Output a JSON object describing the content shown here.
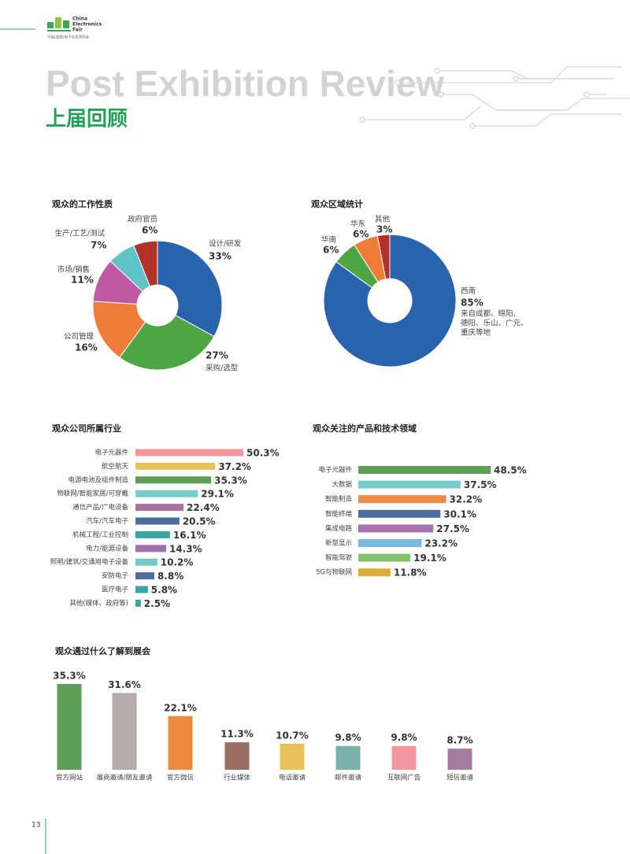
{
  "header": {
    "logo_lines": [
      "China",
      "Electronics",
      "Fair"
    ],
    "logo_sub": "中国(西部)电子信息博览会",
    "title_en": "Post Exhibition Review",
    "title_cn": "上届回顾"
  },
  "page_number": "13",
  "chart_data": [
    {
      "type": "donut",
      "title": "观众的工作性质",
      "categories": [
        "设计/研发",
        "采购/选型",
        "公司管理",
        "市场/销售",
        "生产/工艺/测试",
        "政府官员"
      ],
      "values": [
        33,
        27,
        16,
        11,
        7,
        6
      ],
      "value_labels": [
        "33%",
        "27%",
        "16%",
        "11%",
        "7%",
        "6%"
      ],
      "colors": [
        "#2a63ad",
        "#4fa444",
        "#ef7d3a",
        "#c15aa5",
        "#5fc4c6",
        "#b23128"
      ]
    },
    {
      "type": "donut",
      "title": "观众区域统计",
      "categories": [
        "西南",
        "华南",
        "华东",
        "其他"
      ],
      "values": [
        85,
        6,
        6,
        3
      ],
      "value_labels": [
        "85%",
        "6%",
        "6%",
        "3%"
      ],
      "colors": [
        "#2a63ad",
        "#4fa444",
        "#ef7d3a",
        "#b23128"
      ],
      "annotation": [
        "来自成都、绵阳、",
        "德阳、乐山、广元、",
        "重庆等地"
      ]
    },
    {
      "type": "hbar",
      "title": "观众公司所属行业",
      "categories": [
        "电子元器件",
        "航空航天",
        "电源电池及组件制造",
        "物联网/智能家居/可穿戴",
        "通信产品/广电设备",
        "汽车/汽车电子",
        "机械工程/工业控制",
        "电力/能源设备",
        "照明/建筑/交通用电子设备",
        "安防电子",
        "医疗电子",
        "其他(媒体、政府等)"
      ],
      "values": [
        50.3,
        37.2,
        35.3,
        29.1,
        22.4,
        20.5,
        16.1,
        14.3,
        10.2,
        8.8,
        5.8,
        2.5
      ],
      "value_labels": [
        "50.3%",
        "37.2%",
        "35.3%",
        "29.1%",
        "22.4%",
        "20.5%",
        "16.1%",
        "14.3%",
        "10.2%",
        "8.8%",
        "5.8%",
        "2.5%"
      ],
      "colors": [
        "#f4949c",
        "#e9c25a",
        "#5e9e57",
        "#77cdc8",
        "#a673a0",
        "#4d6d9c",
        "#3aa4a4",
        "#a46fb0",
        "#74cac8",
        "#4d6d9c",
        "#3aa4a4",
        "#3aa4a4"
      ]
    },
    {
      "type": "hbar",
      "title": "观众关注的产品和技术领域",
      "categories": [
        "电子元器件",
        "大数据",
        "智能制造",
        "智能终端",
        "集成电路",
        "新型显示",
        "智能驾驶",
        "5G与物联网"
      ],
      "values": [
        48.5,
        37.5,
        32.2,
        30.1,
        27.5,
        23.2,
        19.1,
        11.8
      ],
      "value_labels": [
        "48.5%",
        "37.5%",
        "32.2%",
        "30.1%",
        "27.5%",
        "23.2%",
        "19.1%",
        "11.8%"
      ],
      "colors": [
        "#5e9e57",
        "#77cdc8",
        "#ef8a4a",
        "#4d6d9c",
        "#a673b0",
        "#7ab8e0",
        "#86c36f",
        "#d9ae3c"
      ]
    },
    {
      "type": "vbar",
      "title": "观众通过什么了解到展会",
      "categories": [
        "官方网站",
        "展商邀请/朋友邀请",
        "官方微信",
        "行业媒体",
        "电话邀请",
        "邮件邀请",
        "互联网广告",
        "短信邀请"
      ],
      "values": [
        35.3,
        31.6,
        22.1,
        11.3,
        10.7,
        9.8,
        9.8,
        8.7
      ],
      "value_labels": [
        "35.3%",
        "31.6%",
        "22.1%",
        "11.3%",
        "10.7%",
        "9.8%",
        "9.8%",
        "8.7%"
      ],
      "colors": [
        "#5e9e57",
        "#b3acaa",
        "#ef8a3a",
        "#9a6e60",
        "#e9c25a",
        "#78b2aa",
        "#f4969e",
        "#a87ba0"
      ]
    }
  ]
}
